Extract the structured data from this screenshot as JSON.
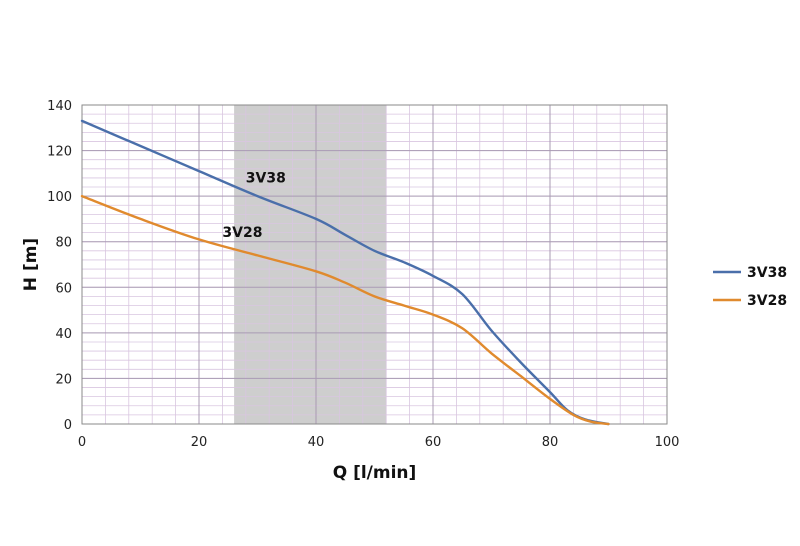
{
  "chart_data": {
    "type": "line",
    "xlabel": "Q [l/min]",
    "ylabel": "H [m]",
    "xlim": [
      0,
      100
    ],
    "ylim": [
      0,
      140
    ],
    "x_ticks": [
      "0",
      "20",
      "40",
      "60",
      "80",
      "100"
    ],
    "y_ticks": [
      "0",
      "20",
      "40",
      "60",
      "80",
      "100",
      "120",
      "140"
    ],
    "grid": true,
    "legend_position": "right",
    "shaded_range": {
      "x": [
        26,
        52
      ],
      "color": "#bdbdbd"
    },
    "series": [
      {
        "name": "3V38",
        "color": "#4a6faa",
        "label_at": {
          "x": 28,
          "y": 106
        },
        "points": [
          [
            0,
            133
          ],
          [
            10,
            122
          ],
          [
            20,
            111
          ],
          [
            30,
            100
          ],
          [
            40,
            90
          ],
          [
            45,
            83
          ],
          [
            50,
            76
          ],
          [
            55,
            71
          ],
          [
            60,
            65
          ],
          [
            65,
            57
          ],
          [
            70,
            41
          ],
          [
            75,
            27
          ],
          [
            80,
            14
          ],
          [
            83,
            6
          ],
          [
            86,
            2
          ],
          [
            90,
            0
          ]
        ]
      },
      {
        "name": "3V28",
        "color": "#e08a2e",
        "label_at": {
          "x": 24,
          "y": 82
        },
        "points": [
          [
            0,
            100
          ],
          [
            10,
            90
          ],
          [
            20,
            81
          ],
          [
            30,
            74
          ],
          [
            40,
            67
          ],
          [
            45,
            62
          ],
          [
            50,
            56
          ],
          [
            55,
            52
          ],
          [
            60,
            48
          ],
          [
            65,
            42
          ],
          [
            70,
            31
          ],
          [
            75,
            21
          ],
          [
            80,
            11
          ],
          [
            84,
            4
          ],
          [
            87,
            1
          ],
          [
            90,
            0
          ]
        ]
      }
    ]
  }
}
